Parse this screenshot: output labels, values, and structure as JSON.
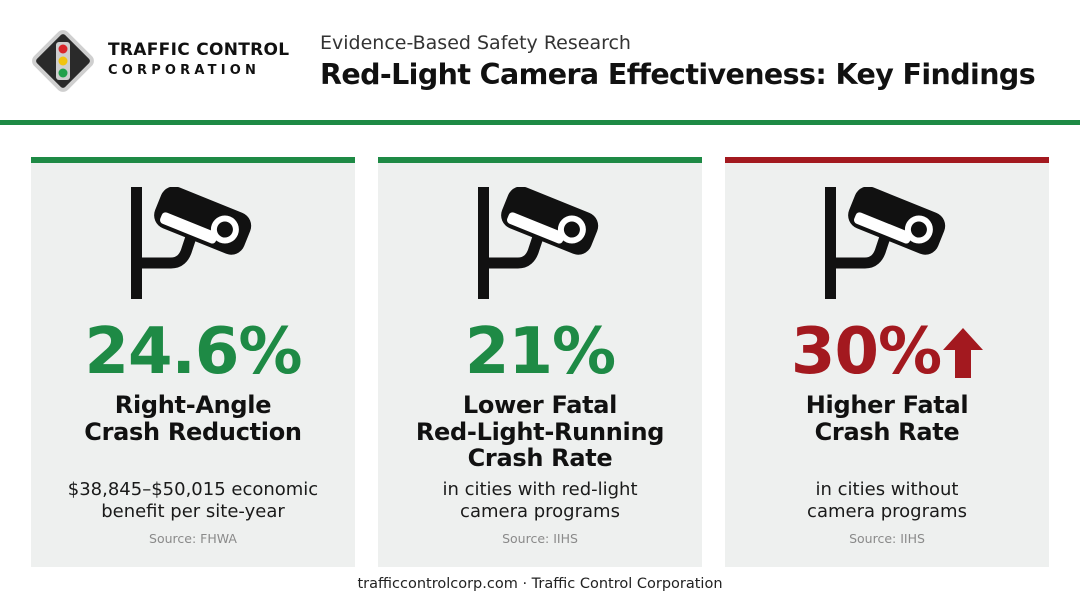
{
  "header": {
    "company_line1": "TRAFFIC CONTROL",
    "company_line2": "CORPORATION",
    "subtitle": "Evidence-Based Safety Research",
    "title": "Red-Light Camera Effectiveness: Key Findings"
  },
  "colors": {
    "brand_green": "#1e8a45",
    "alert_red": "#a3191f",
    "card_background": "#eef0ef"
  },
  "cards": [
    {
      "stat": "24.6%",
      "label_line1": "Right-Angle",
      "label_line2": "Crash Reduction",
      "desc_line1": "$38,845–$50,015 economic",
      "desc_line2": "benefit per site-year",
      "source": "Source: FHWA",
      "accent": "green",
      "icon": "security-camera-icon"
    },
    {
      "stat": "21%",
      "label_line1": "Lower Fatal",
      "label_line2": "Red-Light-Running",
      "label_line3": "Crash Rate",
      "desc_line1": "in cities with red-light",
      "desc_line2": "camera programs",
      "source": "Source: IIHS",
      "accent": "green",
      "icon": "security-camera-icon"
    },
    {
      "stat": "30%",
      "label_line1": "Higher Fatal",
      "label_line2": "Crash Rate",
      "desc_line1": "in cities without",
      "desc_line2": "camera programs",
      "source": "Source: IIHS",
      "accent": "red",
      "icon": "security-camera-icon",
      "trend_icon": "up-arrow-icon"
    }
  ],
  "footer": {
    "text": "trafficcontrolcorp.com · Traffic Control Corporation"
  }
}
